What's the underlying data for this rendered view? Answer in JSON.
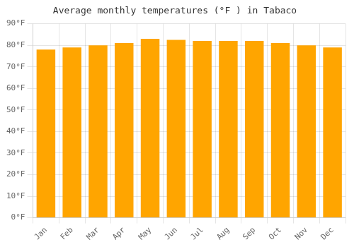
{
  "chart_data": {
    "type": "bar",
    "title": "Average monthly temperatures (°F ) in Tabaco",
    "categories": [
      "Jan",
      "Feb",
      "Mar",
      "Apr",
      "May",
      "Jun",
      "Jul",
      "Aug",
      "Sep",
      "Oct",
      "Nov",
      "Dec"
    ],
    "values": [
      78,
      79,
      80,
      81,
      83,
      82.5,
      82,
      82,
      82,
      81,
      80,
      79
    ],
    "color": "#FFA500",
    "ylim": [
      0,
      90
    ],
    "yticks": [
      {
        "value": 0,
        "label": "0°F"
      },
      {
        "value": 10,
        "label": "10°F"
      },
      {
        "value": 20,
        "label": "20°F"
      },
      {
        "value": 30,
        "label": "30°F"
      },
      {
        "value": 40,
        "label": "40°F"
      },
      {
        "value": 50,
        "label": "50°F"
      },
      {
        "value": 60,
        "label": "60°F"
      },
      {
        "value": 70,
        "label": "70°F"
      },
      {
        "value": 80,
        "label": "80°F"
      },
      {
        "value": 90,
        "label": "90°F"
      }
    ],
    "grid": true
  }
}
